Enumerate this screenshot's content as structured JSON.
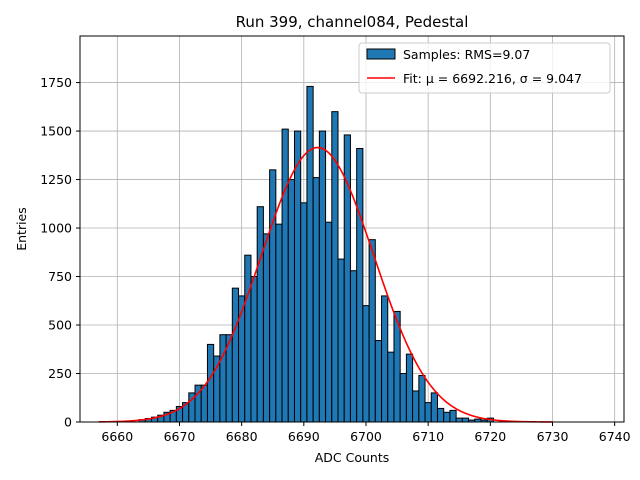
{
  "chart_data": {
    "type": "bar",
    "title": "Run 399, channel084, Pedestal",
    "xlabel": "ADC Counts",
    "ylabel": "Entries",
    "xlim": [
      6654.0,
      6741.5
    ],
    "ylim": [
      0,
      1990
    ],
    "xticks": [
      6660,
      6670,
      6680,
      6690,
      6700,
      6710,
      6720,
      6730,
      6740
    ],
    "yticks": [
      0,
      250,
      500,
      750,
      1000,
      1250,
      1500,
      1750
    ],
    "grid": true,
    "legend_position": "top-right",
    "legend": [
      "Samples: RMS=9.07",
      "Fit: μ = 6692.216, σ = 9.047"
    ],
    "colors": {
      "bar": "#1f77b4",
      "fit": "#ff0000"
    },
    "histogram": {
      "name": "Samples: RMS=9.07",
      "bin_width": 1,
      "bins": [
        6664,
        6665,
        6666,
        6667,
        6668,
        6669,
        6670,
        6671,
        6672,
        6673,
        6674,
        6675,
        6676,
        6677,
        6678,
        6679,
        6680,
        6681,
        6682,
        6683,
        6684,
        6685,
        6686,
        6687,
        6688,
        6689,
        6690,
        6691,
        6692,
        6693,
        6694,
        6695,
        6696,
        6697,
        6698,
        6699,
        6700,
        6701,
        6702,
        6703,
        6704,
        6705,
        6706,
        6707,
        6708,
        6709,
        6710,
        6711,
        6712,
        6713,
        6714,
        6715,
        6716,
        6717,
        6718,
        6719,
        6720
      ],
      "values": [
        12,
        18,
        25,
        35,
        50,
        60,
        80,
        100,
        150,
        190,
        190,
        400,
        340,
        450,
        450,
        690,
        650,
        860,
        750,
        1110,
        970,
        1300,
        1020,
        1510,
        1250,
        1500,
        1130,
        1730,
        1260,
        1500,
        1030,
        1600,
        840,
        1480,
        780,
        1410,
        600,
        940,
        420,
        650,
        360,
        570,
        250,
        350,
        160,
        240,
        100,
        150,
        70,
        50,
        60,
        20,
        20,
        10,
        15,
        10,
        20
      ]
    },
    "fit": {
      "name": "Fit: μ = 6692.216, σ = 9.047",
      "mu": 6692.216,
      "sigma": 9.047,
      "amplitude": 1415,
      "x_range": [
        6657,
        6730
      ]
    }
  }
}
